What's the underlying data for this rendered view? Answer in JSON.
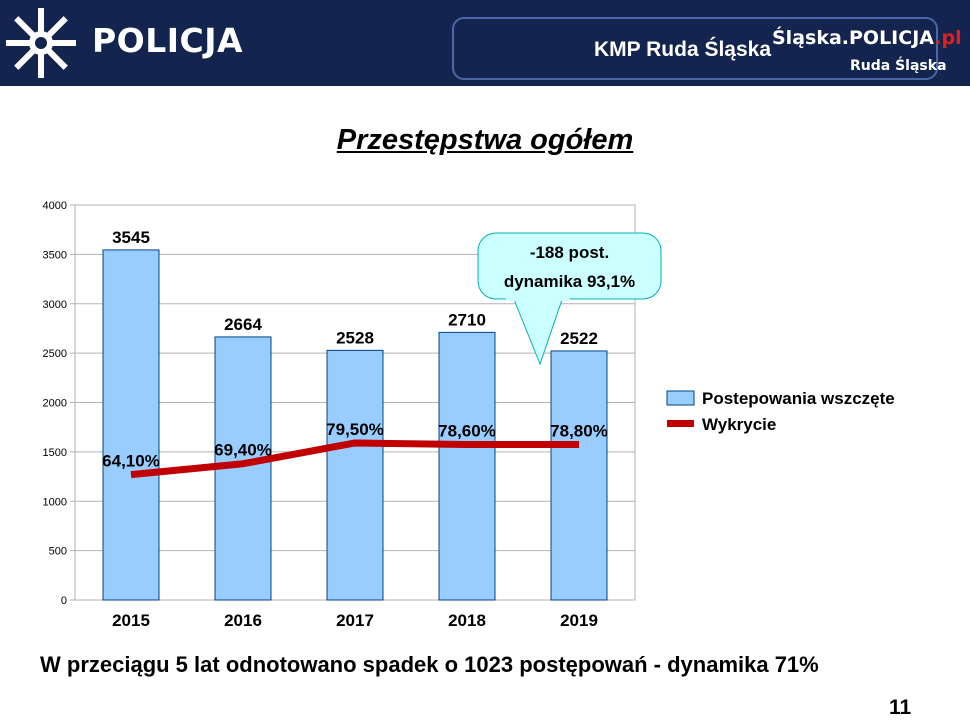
{
  "header": {
    "brand": "POLICJA",
    "unit_name": "KMP Ruda Śląska",
    "site_name": "Śląska.POLICJA",
    "site_tld": ".pl",
    "site_sub": "Ruda Śląska",
    "bg_color": "#13244e"
  },
  "title": "Przestępstwa ogółem",
  "callout": {
    "line1": "-188 post.",
    "line2": "dynamika 93,1%"
  },
  "summary": "W przeciągu 5 lat odnotowano spadek o 1023 postępowań - dynamika 71%",
  "page_number": "11",
  "chart_data": {
    "type": "bar",
    "categories": [
      "2015",
      "2016",
      "2017",
      "2018",
      "2019"
    ],
    "series": [
      {
        "name": "Postepowania wszczęte",
        "kind": "bar",
        "color": "#99ccff",
        "values": [
          3545,
          2664,
          2528,
          2710,
          2522
        ],
        "labels": [
          "3545",
          "2664",
          "2528",
          "2710",
          "2522"
        ]
      },
      {
        "name": "Wykrycie",
        "kind": "line",
        "color": "#c00000",
        "values": [
          1270,
          1380,
          1590,
          1575,
          1575
        ],
        "labels": [
          "64,10%",
          "69,40%",
          "79,50%",
          "78,60%",
          "78,80%"
        ]
      }
    ],
    "ylim": [
      0,
      4000
    ],
    "yticks": [
      "0",
      "500",
      "1000",
      "1500",
      "2000",
      "2500",
      "3000",
      "3500",
      "4000"
    ],
    "grid": true,
    "legend": "right"
  }
}
